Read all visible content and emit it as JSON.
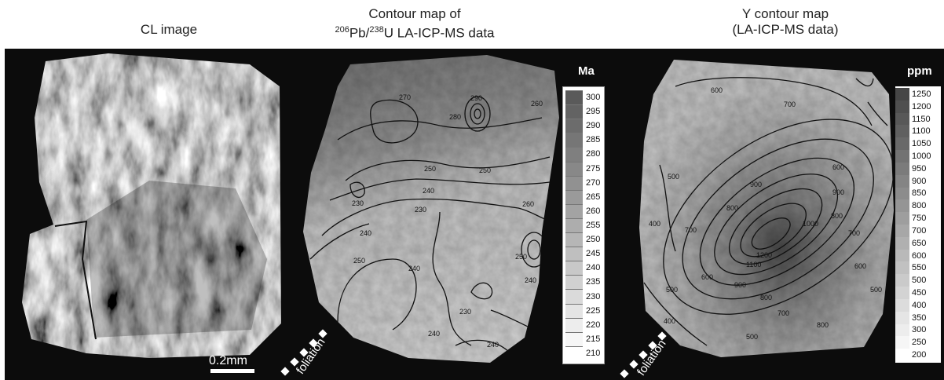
{
  "titles": {
    "cl": "CL image",
    "pb_line1": "Contour map of",
    "pb_sup1": "206",
    "pb_mid": "Pb/",
    "pb_sup2": "238",
    "pb_rest": "U LA-ICP-MS data",
    "y_line1": "Y contour map",
    "y_line2": "(LA-ICP-MS data)"
  },
  "scale_bar": "0.2mm",
  "foliation_label": "foliation",
  "age_legend": {
    "unit": "Ma",
    "values": [
      "300",
      "295",
      "290",
      "285",
      "280",
      "275",
      "270",
      "265",
      "260",
      "255",
      "250",
      "245",
      "240",
      "235",
      "230",
      "225",
      "220",
      "215",
      "210"
    ]
  },
  "y_legend": {
    "unit": "ppm",
    "values": [
      "1250",
      "1200",
      "1150",
      "1100",
      "1050",
      "1000",
      "950",
      "900",
      "850",
      "800",
      "750",
      "700",
      "650",
      "600",
      "550",
      "500",
      "450",
      "400",
      "350",
      "300",
      "250",
      "200"
    ]
  },
  "age_contour_labels": [
    "270",
    "280",
    "260",
    "290",
    "250",
    "240",
    "230",
    "240",
    "250",
    "240",
    "230",
    "240",
    "250",
    "260",
    "250",
    "230",
    "240",
    "240"
  ],
  "y_contour_labels": [
    "600",
    "700",
    "500",
    "400",
    "700",
    "800",
    "900",
    "1000",
    "1100",
    "1200",
    "900",
    "800",
    "700",
    "600",
    "500",
    "400",
    "500",
    "600",
    "700",
    "800",
    "900",
    "800",
    "600",
    "500"
  ]
}
